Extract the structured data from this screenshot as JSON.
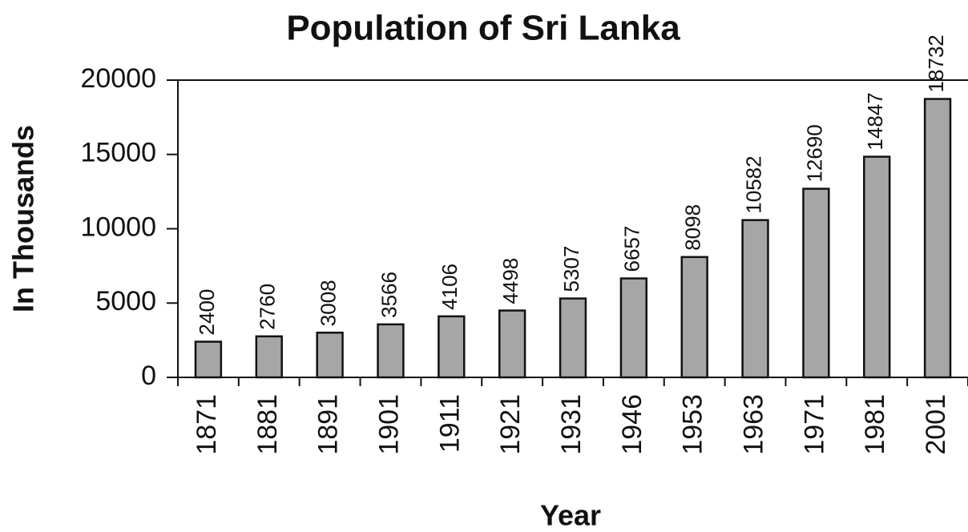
{
  "chart_data": {
    "type": "bar",
    "title": "Population of Sri Lanka",
    "x_label": "Year",
    "y_label": "In Thousands",
    "categories": [
      "1871",
      "1881",
      "1891",
      "1901",
      "1911",
      "1921",
      "1931",
      "1946",
      "1953",
      "1963",
      "1971",
      "1981",
      "2001"
    ],
    "values": [
      2400,
      2760,
      3008,
      3566,
      4106,
      4498,
      5307,
      6657,
      8098,
      10582,
      12690,
      14847,
      18732
    ],
    "color": "#a6a6a6",
    "ylim": [
      0,
      20000
    ],
    "yticks": [
      0,
      5000,
      10000,
      15000,
      20000
    ],
    "grid": false
  }
}
